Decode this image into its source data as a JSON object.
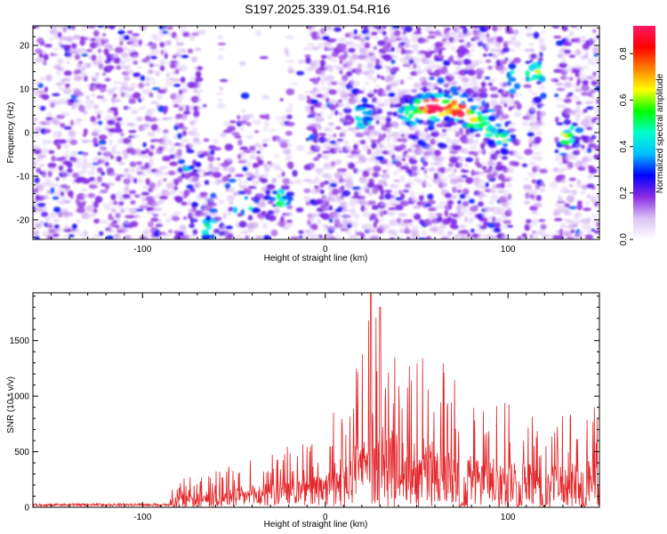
{
  "title": "S197.2025.339.01.54.R16",
  "chart_data": [
    {
      "type": "heatmap",
      "name": "spectrogram",
      "xlabel": "Height of straight line (km)",
      "ylabel": "Frequency (Hz)",
      "xlim": [
        -160,
        150
      ],
      "ylim": [
        -24.5,
        24.5
      ],
      "xticks": [
        -100,
        0,
        100
      ],
      "yticks": [
        -20,
        -10,
        0,
        10,
        20
      ],
      "colorbar": {
        "label": "Normalized spectral amplitude",
        "range": [
          0,
          0.92
        ],
        "ticks": [
          0.0,
          0.2,
          0.4,
          0.6,
          0.8
        ],
        "colors": [
          "#ffffff",
          "#d9c2f5",
          "#8a2be2",
          "#0000ff",
          "#00bfff",
          "#00ffcc",
          "#00ff00",
          "#ffff00",
          "#ff8000",
          "#ff0000",
          "#ff1a66"
        ]
      },
      "ridge": [
        {
          "x": -75,
          "y": -7,
          "a": 0.3
        },
        {
          "x": -65,
          "y": -22,
          "a": 0.45
        },
        {
          "x": -45,
          "y": -17,
          "a": 0.5
        },
        {
          "x": -25,
          "y": -16,
          "a": 0.4
        },
        {
          "x": 20,
          "y": 3,
          "a": 0.35
        },
        {
          "x": 45,
          "y": 4,
          "a": 0.45
        },
        {
          "x": 55,
          "y": 5,
          "a": 0.82
        },
        {
          "x": 62,
          "y": 5.5,
          "a": 0.85
        },
        {
          "x": 72,
          "y": 5,
          "a": 0.75
        },
        {
          "x": 80,
          "y": 3,
          "a": 0.55
        },
        {
          "x": 88,
          "y": 1,
          "a": 0.5
        },
        {
          "x": 97,
          "y": -2,
          "a": 0.5
        },
        {
          "x": 103,
          "y": 12,
          "a": 0.35
        },
        {
          "x": 115,
          "y": 13.5,
          "a": 0.6
        },
        {
          "x": 132,
          "y": -1,
          "a": 0.55
        }
      ]
    },
    {
      "type": "line",
      "name": "snr",
      "xlabel": "Height of straight line (km)",
      "ylabel": "SNR (10 * v/v)",
      "xlim": [
        -160,
        150
      ],
      "ylim": [
        0,
        1930
      ],
      "xticks": [
        -100,
        0,
        100
      ],
      "yticks": [
        0,
        500,
        1000,
        1500
      ],
      "color": "#e3262a",
      "envelope": {
        "x": [
          -160,
          -100,
          -80,
          -60,
          -40,
          -20,
          0,
          10,
          20,
          25,
          40,
          60,
          70,
          80,
          100,
          120,
          140,
          150
        ],
        "y": [
          30,
          50,
          250,
          350,
          450,
          550,
          650,
          1100,
          1500,
          1920,
          1450,
          1350,
          1250,
          1050,
          950,
          800,
          900,
          1000
        ]
      }
    }
  ]
}
